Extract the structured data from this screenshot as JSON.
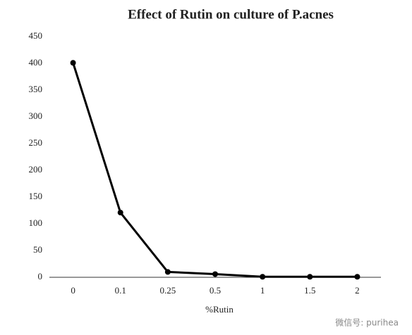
{
  "chart_data": {
    "type": "line",
    "title": "Effect of Rutin on culture of P.acnes",
    "x_label": "%Rutin",
    "categories": [
      "0",
      "0.1",
      "0.25",
      "0.5",
      "1",
      "1.5",
      "2"
    ],
    "values": [
      401,
      121,
      10,
      6,
      1,
      1,
      1
    ],
    "color": "#000000",
    "ylim": [
      0,
      450
    ],
    "yticks": [
      0,
      50,
      100,
      150,
      200,
      250,
      300,
      350,
      400,
      450
    ],
    "grid": false,
    "watermark": "微信号: purihea"
  }
}
